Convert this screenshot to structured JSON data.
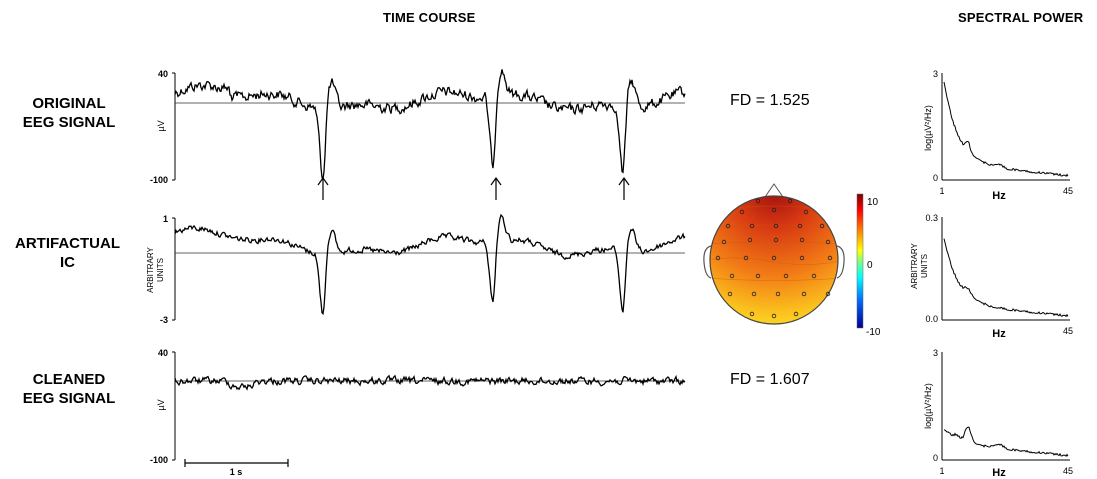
{
  "headers": {
    "time_course": "TIME COURSE",
    "spectral_power": "SPECTRAL POWER"
  },
  "rows": [
    {
      "label_line1": "ORIGINAL",
      "label_line2": "EEG SIGNAL",
      "ylabel": "µV",
      "ytick_top": "40",
      "ytick_bottom": "-100",
      "fd": "FD = 1.525",
      "spec_ylabel": "log(µV²/Hz)",
      "spec_ytick_top": "3",
      "spec_ytick_bottom": "0",
      "spec_xtick_left": "1",
      "spec_xtick_right": "45",
      "spec_xlabel": "Hz"
    },
    {
      "label_line1": "ARTIFACTUAL",
      "label_line2": "IC",
      "ylabel_line1": "ARBITRARY",
      "ylabel_line2": "UNITS",
      "ytick_top": "1",
      "ytick_bottom": "-3",
      "spec_ylabel_line1": "ARBITRARY",
      "spec_ylabel_line2": "UNITS",
      "spec_ytick_top": "0.3",
      "spec_ytick_bottom": "0.0",
      "spec_xlabel": "Hz",
      "spec_xtick_right": "45"
    },
    {
      "label_line1": "CLEANED",
      "label_line2": "EEG SIGNAL",
      "ylabel": "µV",
      "ytick_top": "40",
      "ytick_bottom": "-100",
      "fd": "FD = 1.607",
      "spec_ylabel": "log(µV²/Hz)",
      "spec_ytick_top": "3",
      "spec_ytick_bottom": "0",
      "spec_xtick_left": "1",
      "spec_xtick_right": "45",
      "spec_xlabel": "Hz"
    }
  ],
  "scale_bar_label": "1 s",
  "colorbar": {
    "tick_top": "10",
    "tick_mid": "0",
    "tick_bottom": "-10"
  }
}
